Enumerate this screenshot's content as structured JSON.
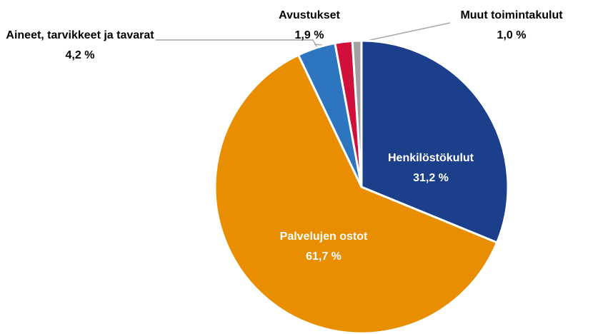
{
  "chart_data": {
    "type": "pie",
    "categories": [
      "Henkilöstökulut",
      "Palvelujen ostot",
      "Aineet, tarvikkeet ja tavarat",
      "Avustukset",
      "Muut toimintakulut"
    ],
    "values": [
      31.2,
      61.7,
      4.2,
      1.9,
      1.0
    ],
    "value_labels": [
      "31,2 %",
      "61,7 %",
      "4,2 %",
      "1,9 %",
      "1,0 %"
    ],
    "colors": [
      "#1b3f8b",
      "#e88e00",
      "#2e75c0",
      "#d0103a",
      "#a0a0a0"
    ]
  }
}
